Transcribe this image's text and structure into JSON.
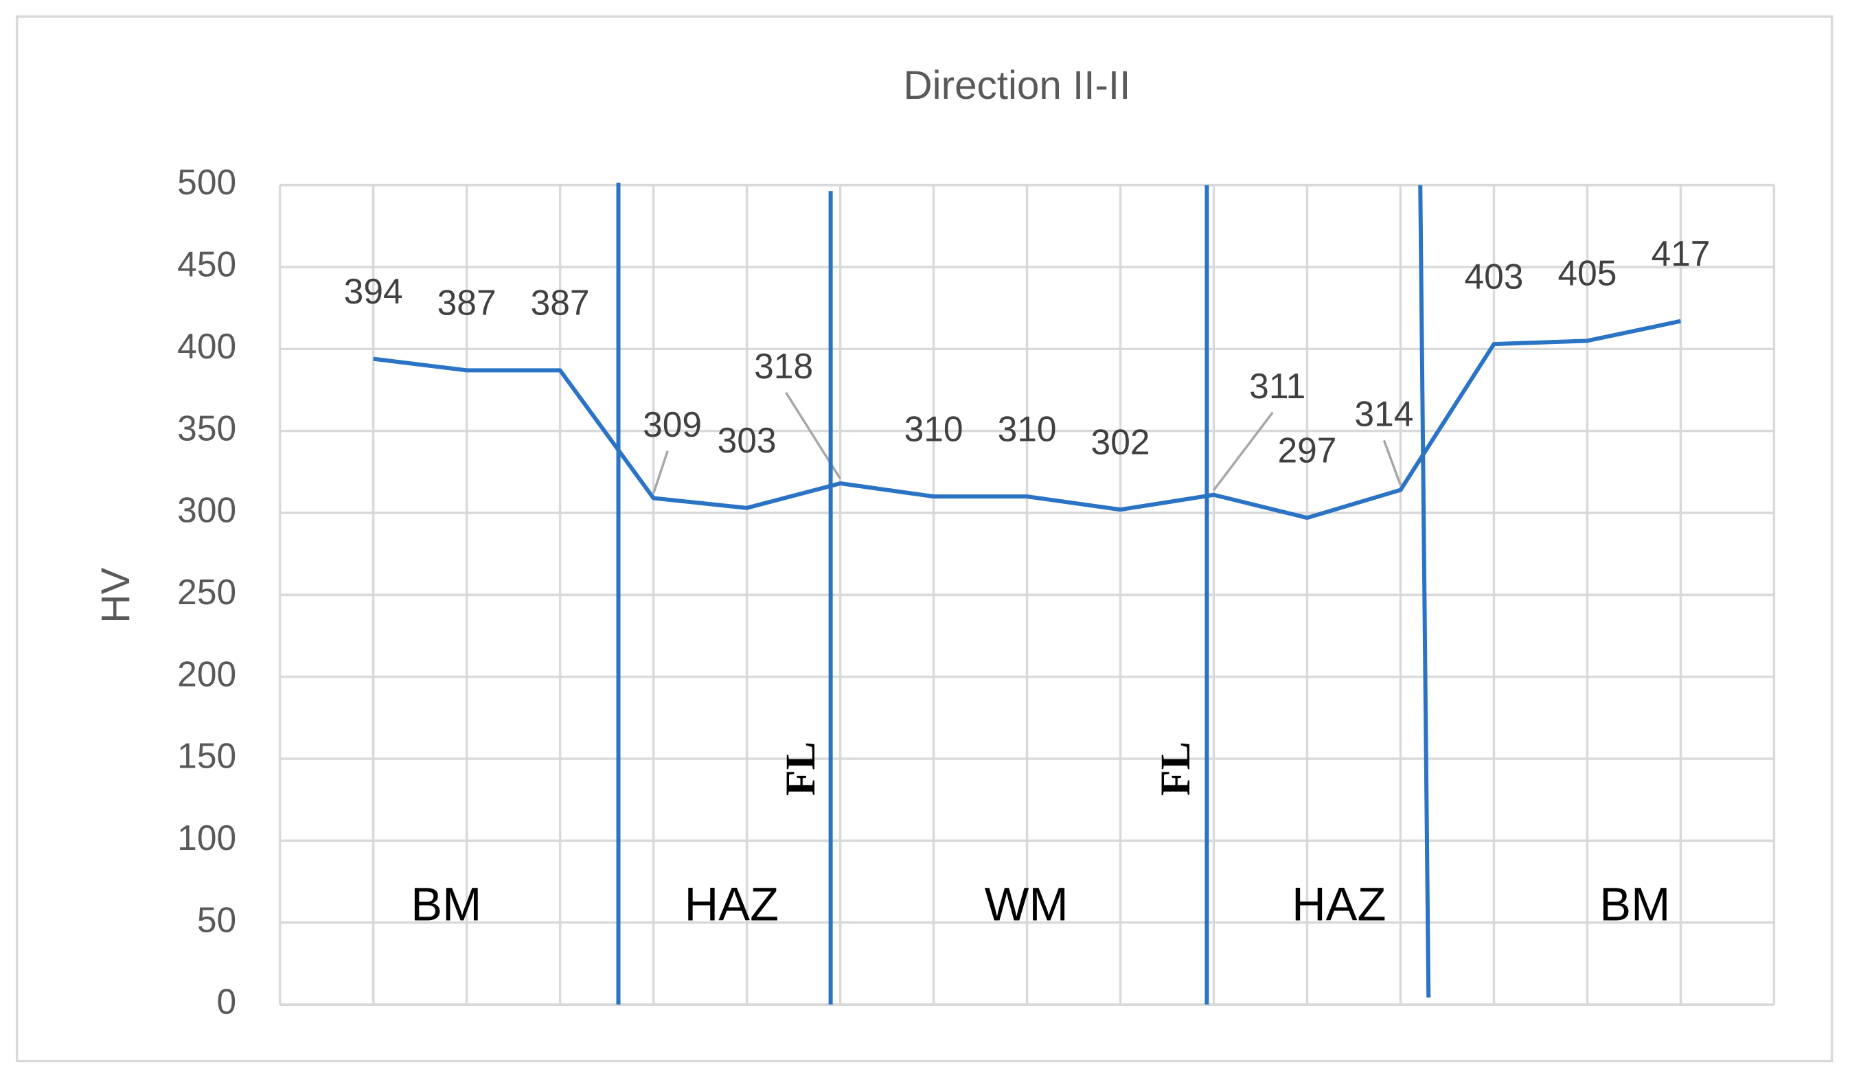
{
  "chart_data": {
    "type": "line",
    "title": "Direction II-II",
    "y_label": "HV",
    "categories": [
      null,
      null,
      null,
      null,
      null,
      null,
      null,
      null,
      null,
      null,
      null,
      null,
      null,
      null,
      null
    ],
    "values": [
      394,
      387,
      387,
      309,
      303,
      318,
      310,
      310,
      302,
      311,
      297,
      314,
      403,
      405,
      417
    ],
    "color": "#2a73c5",
    "ylim": [
      0,
      500
    ],
    "yticks": [
      0,
      50,
      100,
      150,
      200,
      250,
      300,
      350,
      400,
      450,
      500
    ],
    "grid": true,
    "zones": [
      "BM",
      "HAZ",
      "WM",
      "HAZ",
      "BM"
    ],
    "fusion_lines": [
      "FL",
      "FL"
    ]
  }
}
